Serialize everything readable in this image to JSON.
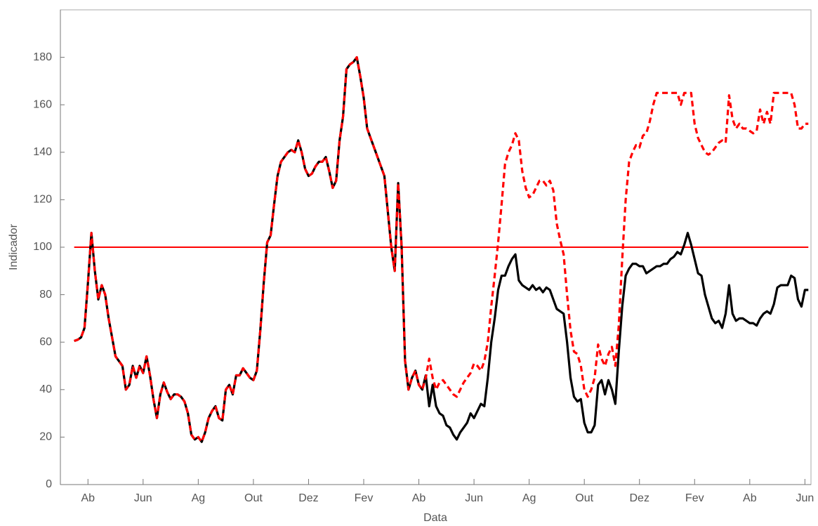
{
  "chart_data": {
    "type": "line",
    "xlabel": "Data",
    "ylabel": "Indicador",
    "x": [
      0.5,
      0.625,
      0.75,
      0.875,
      1,
      1.125,
      1.25,
      1.375,
      1.5,
      1.625,
      1.75,
      1.875,
      2,
      2.125,
      2.25,
      2.375,
      2.5,
      2.625,
      2.75,
      2.875,
      3,
      3.125,
      3.25,
      3.375,
      3.5,
      3.625,
      3.75,
      3.875,
      4,
      4.125,
      4.25,
      4.375,
      4.5,
      4.625,
      4.75,
      4.875,
      5,
      5.125,
      5.25,
      5.375,
      5.5,
      5.625,
      5.75,
      5.875,
      6,
      6.125,
      6.25,
      6.375,
      6.5,
      6.625,
      6.75,
      6.875,
      7,
      7.125,
      7.25,
      7.375,
      7.5,
      7.625,
      7.75,
      7.875,
      8,
      8.125,
      8.25,
      8.375,
      8.5,
      8.625,
      8.75,
      8.875,
      9,
      9.125,
      9.25,
      9.375,
      9.5,
      9.625,
      9.75,
      9.875,
      10,
      10.125,
      10.25,
      10.375,
      10.5,
      10.625,
      10.75,
      10.875,
      11,
      11.125,
      11.25,
      11.375,
      11.5,
      11.625,
      11.75,
      11.875,
      12,
      12.125,
      12.25,
      12.375,
      12.5,
      12.625,
      12.75,
      12.875,
      13,
      13.125,
      13.25,
      13.375,
      13.5,
      13.625,
      13.75,
      13.875,
      14,
      14.125,
      14.25,
      14.375,
      14.5,
      14.625,
      14.75,
      14.875,
      15,
      15.125,
      15.25,
      15.375,
      15.5,
      15.625,
      15.75,
      15.875,
      16,
      16.125,
      16.25,
      16.375,
      16.5,
      16.625,
      16.75,
      16.875,
      17,
      17.125,
      17.25,
      17.375,
      17.5,
      17.625,
      17.75,
      17.875,
      18,
      18.125,
      18.25,
      18.375,
      18.5,
      18.625,
      18.75,
      18.875,
      19,
      19.125,
      19.25,
      19.375,
      19.5,
      19.625,
      19.75,
      19.875,
      20,
      20.125,
      20.25,
      20.375,
      20.5,
      20.625,
      20.75,
      20.875,
      21,
      21.125,
      21.25,
      21.375,
      21.5,
      21.625,
      21.75,
      21.875,
      22,
      22.125,
      22.25,
      22.375,
      22.5,
      22.625,
      22.75,
      22.875,
      23,
      23.125,
      23.25,
      23.375,
      23.5,
      23.625,
      23.75,
      23.875,
      24,
      24.125,
      24.25,
      24.375,
      24.5,
      24.625,
      24.75,
      24.875,
      25,
      25.125,
      25.25,
      25.375,
      25.5,
      25.625,
      25.75,
      25.875,
      26,
      26.125,
      26.25,
      26.375,
      26.5,
      26.625,
      26.75,
      26.875,
      27,
      27.125
    ],
    "series": [
      {
        "color": "#000000",
        "style": "solid",
        "values": [
          60.5,
          61,
          62,
          66,
          85,
          106,
          90,
          78,
          84,
          80,
          70,
          62,
          54,
          52,
          50,
          40,
          42,
          50,
          45,
          50,
          47,
          54,
          46,
          36,
          28,
          38,
          43,
          39,
          36,
          38,
          38,
          37,
          35,
          30,
          21,
          19,
          20,
          18,
          22,
          28,
          31,
          33,
          28,
          27,
          40,
          42,
          38,
          46,
          46,
          49,
          47,
          45,
          44,
          48,
          65,
          85,
          102,
          105,
          118,
          130,
          136,
          138,
          140,
          141,
          140,
          145,
          140,
          133,
          130,
          131,
          134,
          136,
          136,
          138,
          132,
          125,
          128,
          145,
          155,
          175,
          177,
          178,
          180,
          172,
          163,
          150,
          146,
          142,
          138,
          134,
          130,
          115,
          100,
          90,
          127,
          100,
          52,
          40,
          45,
          48,
          42,
          40,
          46,
          33,
          42,
          33,
          30,
          29,
          25,
          24,
          21,
          19,
          22,
          24,
          26,
          30,
          28,
          31,
          34,
          33,
          45,
          60,
          70,
          82,
          88,
          88,
          92,
          95,
          97,
          86,
          84,
          83,
          82,
          84,
          82,
          83,
          81,
          83,
          82,
          78,
          74,
          73,
          72,
          60,
          45,
          37,
          35,
          36,
          26,
          22,
          22,
          25,
          42,
          44,
          38,
          44,
          40,
          34,
          56,
          75,
          88,
          91,
          93,
          93,
          92,
          92,
          89,
          90,
          91,
          92,
          92,
          93,
          93,
          95,
          96,
          98,
          97,
          101,
          106,
          101,
          95,
          89,
          88,
          80,
          75,
          70,
          68,
          69,
          66,
          72,
          84,
          72,
          69,
          70,
          70,
          69,
          68,
          68,
          67,
          70,
          72,
          73,
          72,
          76,
          83,
          84,
          84,
          84,
          88,
          87,
          78,
          75,
          82,
          82
        ]
      },
      {
        "color": "#ff0000",
        "style": "dashed",
        "values": [
          60.5,
          61,
          62,
          66,
          85,
          106,
          90,
          78,
          84,
          80,
          70,
          62,
          54,
          52,
          50,
          40,
          42,
          50,
          45,
          50,
          47,
          54,
          46,
          36,
          28,
          38,
          43,
          39,
          36,
          38,
          38,
          37,
          35,
          30,
          21,
          19,
          20,
          18,
          22,
          28,
          31,
          33,
          28,
          27,
          40,
          42,
          38,
          46,
          46,
          49,
          47,
          45,
          44,
          48,
          65,
          85,
          102,
          105,
          118,
          130,
          136,
          138,
          140,
          141,
          140,
          145,
          140,
          133,
          130,
          131,
          134,
          136,
          136,
          138,
          132,
          125,
          128,
          145,
          155,
          175,
          177,
          178,
          180,
          172,
          163,
          150,
          146,
          142,
          138,
          134,
          130,
          115,
          100,
          90,
          127,
          100,
          52,
          40,
          45,
          48,
          42,
          40,
          45,
          53,
          45,
          40,
          43,
          44,
          42,
          40,
          38,
          37,
          40,
          43,
          45,
          47,
          51,
          50,
          48,
          52,
          60,
          75,
          88,
          102,
          118,
          135,
          140,
          143,
          148,
          145,
          132,
          125,
          121,
          122,
          125,
          128,
          128,
          126,
          128,
          124,
          110,
          103,
          97,
          80,
          65,
          56,
          55,
          50,
          40,
          37,
          40,
          45,
          59,
          53,
          50,
          55,
          58,
          50,
          67,
          95,
          120,
          136,
          140,
          143,
          142,
          147,
          148,
          153,
          160,
          165,
          165,
          165,
          165,
          165,
          165,
          165,
          160,
          165,
          165,
          165,
          152,
          146,
          143,
          140,
          139,
          140,
          142,
          144,
          145,
          144,
          164,
          154,
          150,
          152,
          150,
          150,
          149,
          148,
          149,
          158,
          152,
          157,
          152,
          165,
          165,
          165,
          165,
          165,
          165,
          160,
          150,
          150,
          152,
          152
        ]
      }
    ],
    "hline": 100,
    "hline_color": "#ff0000",
    "xlim": [
      0,
      27.22
    ],
    "ylim": [
      0,
      200
    ],
    "xticks": [
      {
        "value": 1,
        "label": "Ab"
      },
      {
        "value": 3,
        "label": "Jun"
      },
      {
        "value": 5,
        "label": "Ag"
      },
      {
        "value": 7,
        "label": "Out"
      },
      {
        "value": 9,
        "label": "Dez"
      },
      {
        "value": 11,
        "label": "Fev"
      },
      {
        "value": 13,
        "label": "Ab"
      },
      {
        "value": 15,
        "label": "Jun"
      },
      {
        "value": 17,
        "label": "Ag"
      },
      {
        "value": 19,
        "label": "Out"
      },
      {
        "value": 21,
        "label": "Dez"
      },
      {
        "value": 23,
        "label": "Fev"
      },
      {
        "value": 25,
        "label": "Ab"
      },
      {
        "value": 27,
        "label": "Jun"
      }
    ],
    "yticks": [
      0,
      20,
      40,
      60,
      80,
      100,
      120,
      140,
      160,
      180
    ],
    "grid": false
  }
}
